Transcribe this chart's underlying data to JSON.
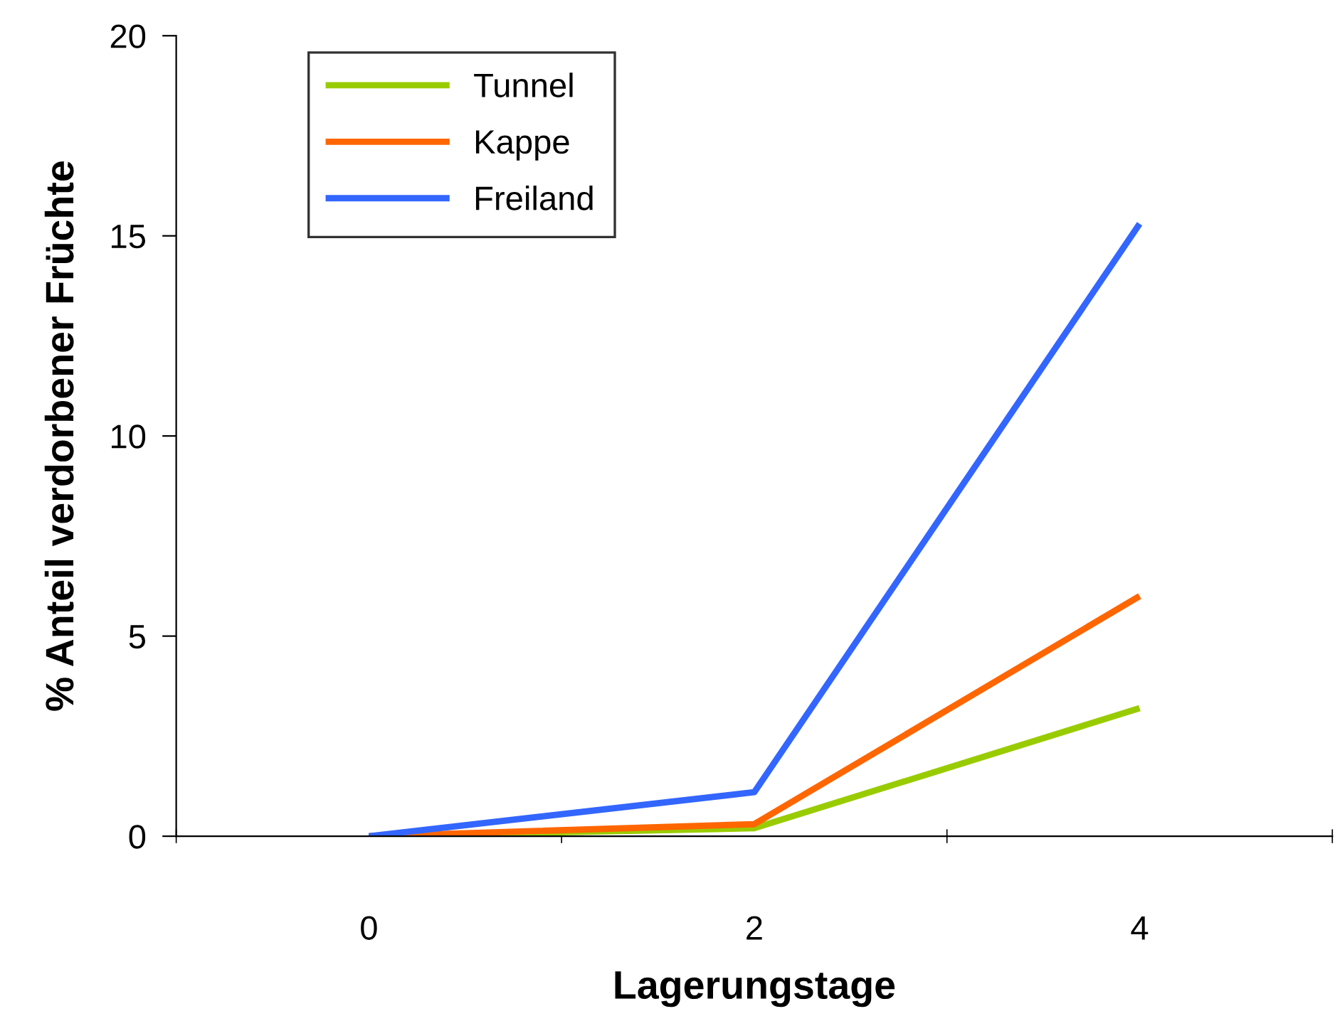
{
  "chart_data": {
    "type": "line",
    "xlabel": "Lagerungstage",
    "ylabel": "% Anteil verdorbener Früchte",
    "categories": [
      "0",
      "2",
      "4"
    ],
    "series": [
      {
        "name": "Tunnel",
        "color": "#99cc00",
        "values": [
          0,
          0.2,
          3.2
        ]
      },
      {
        "name": "Kappe",
        "color": "#ff6600",
        "values": [
          0,
          0.3,
          6.0
        ]
      },
      {
        "name": "Freiland",
        "color": "#3366ff",
        "values": [
          0,
          1.1,
          15.3
        ]
      }
    ],
    "ylim": [
      0,
      20
    ],
    "yticks": [
      0,
      5,
      10,
      15,
      20
    ],
    "grid": false,
    "legend": "top left",
    "marker": "none",
    "line_style": "solid"
  }
}
